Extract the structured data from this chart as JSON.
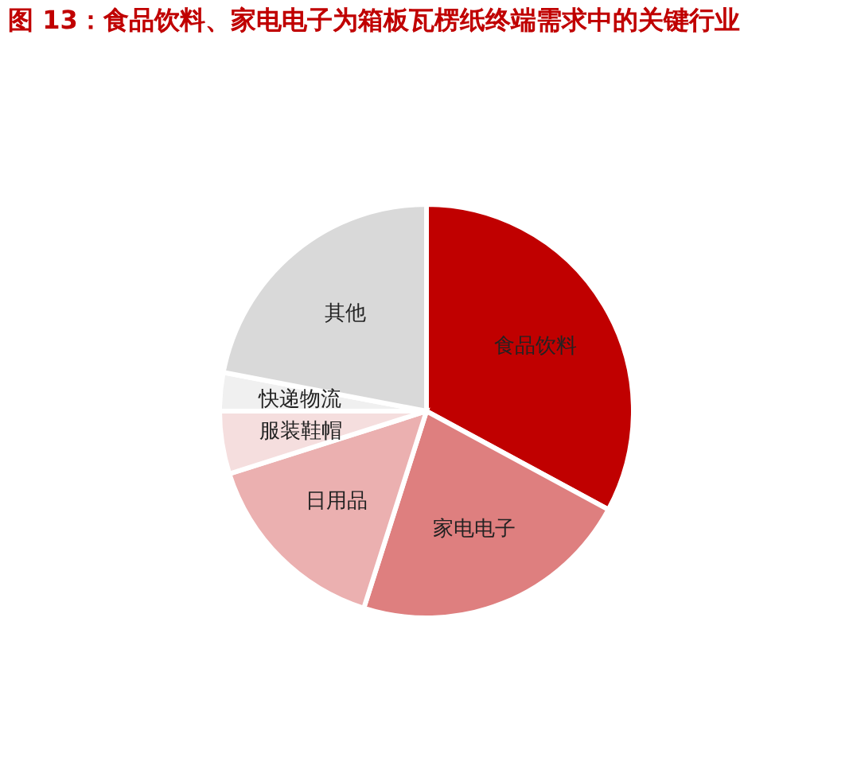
{
  "chart_data": {
    "type": "pie",
    "title": "图 13：食品饮料、家电电子为箱板瓦楞纸终端需求中的关键行业",
    "categories": [
      "食品饮料",
      "家电电子",
      "日用品",
      "服装鞋帽",
      "快递物流",
      "其他"
    ],
    "values": [
      32.9,
      22,
      15.2,
      4.9,
      3,
      22
    ],
    "colors": [
      "#c00000",
      "#de7f7f",
      "#ebb0b0",
      "#f5dede",
      "#f0f0f0",
      "#d9d9d9"
    ],
    "legend": false
  }
}
